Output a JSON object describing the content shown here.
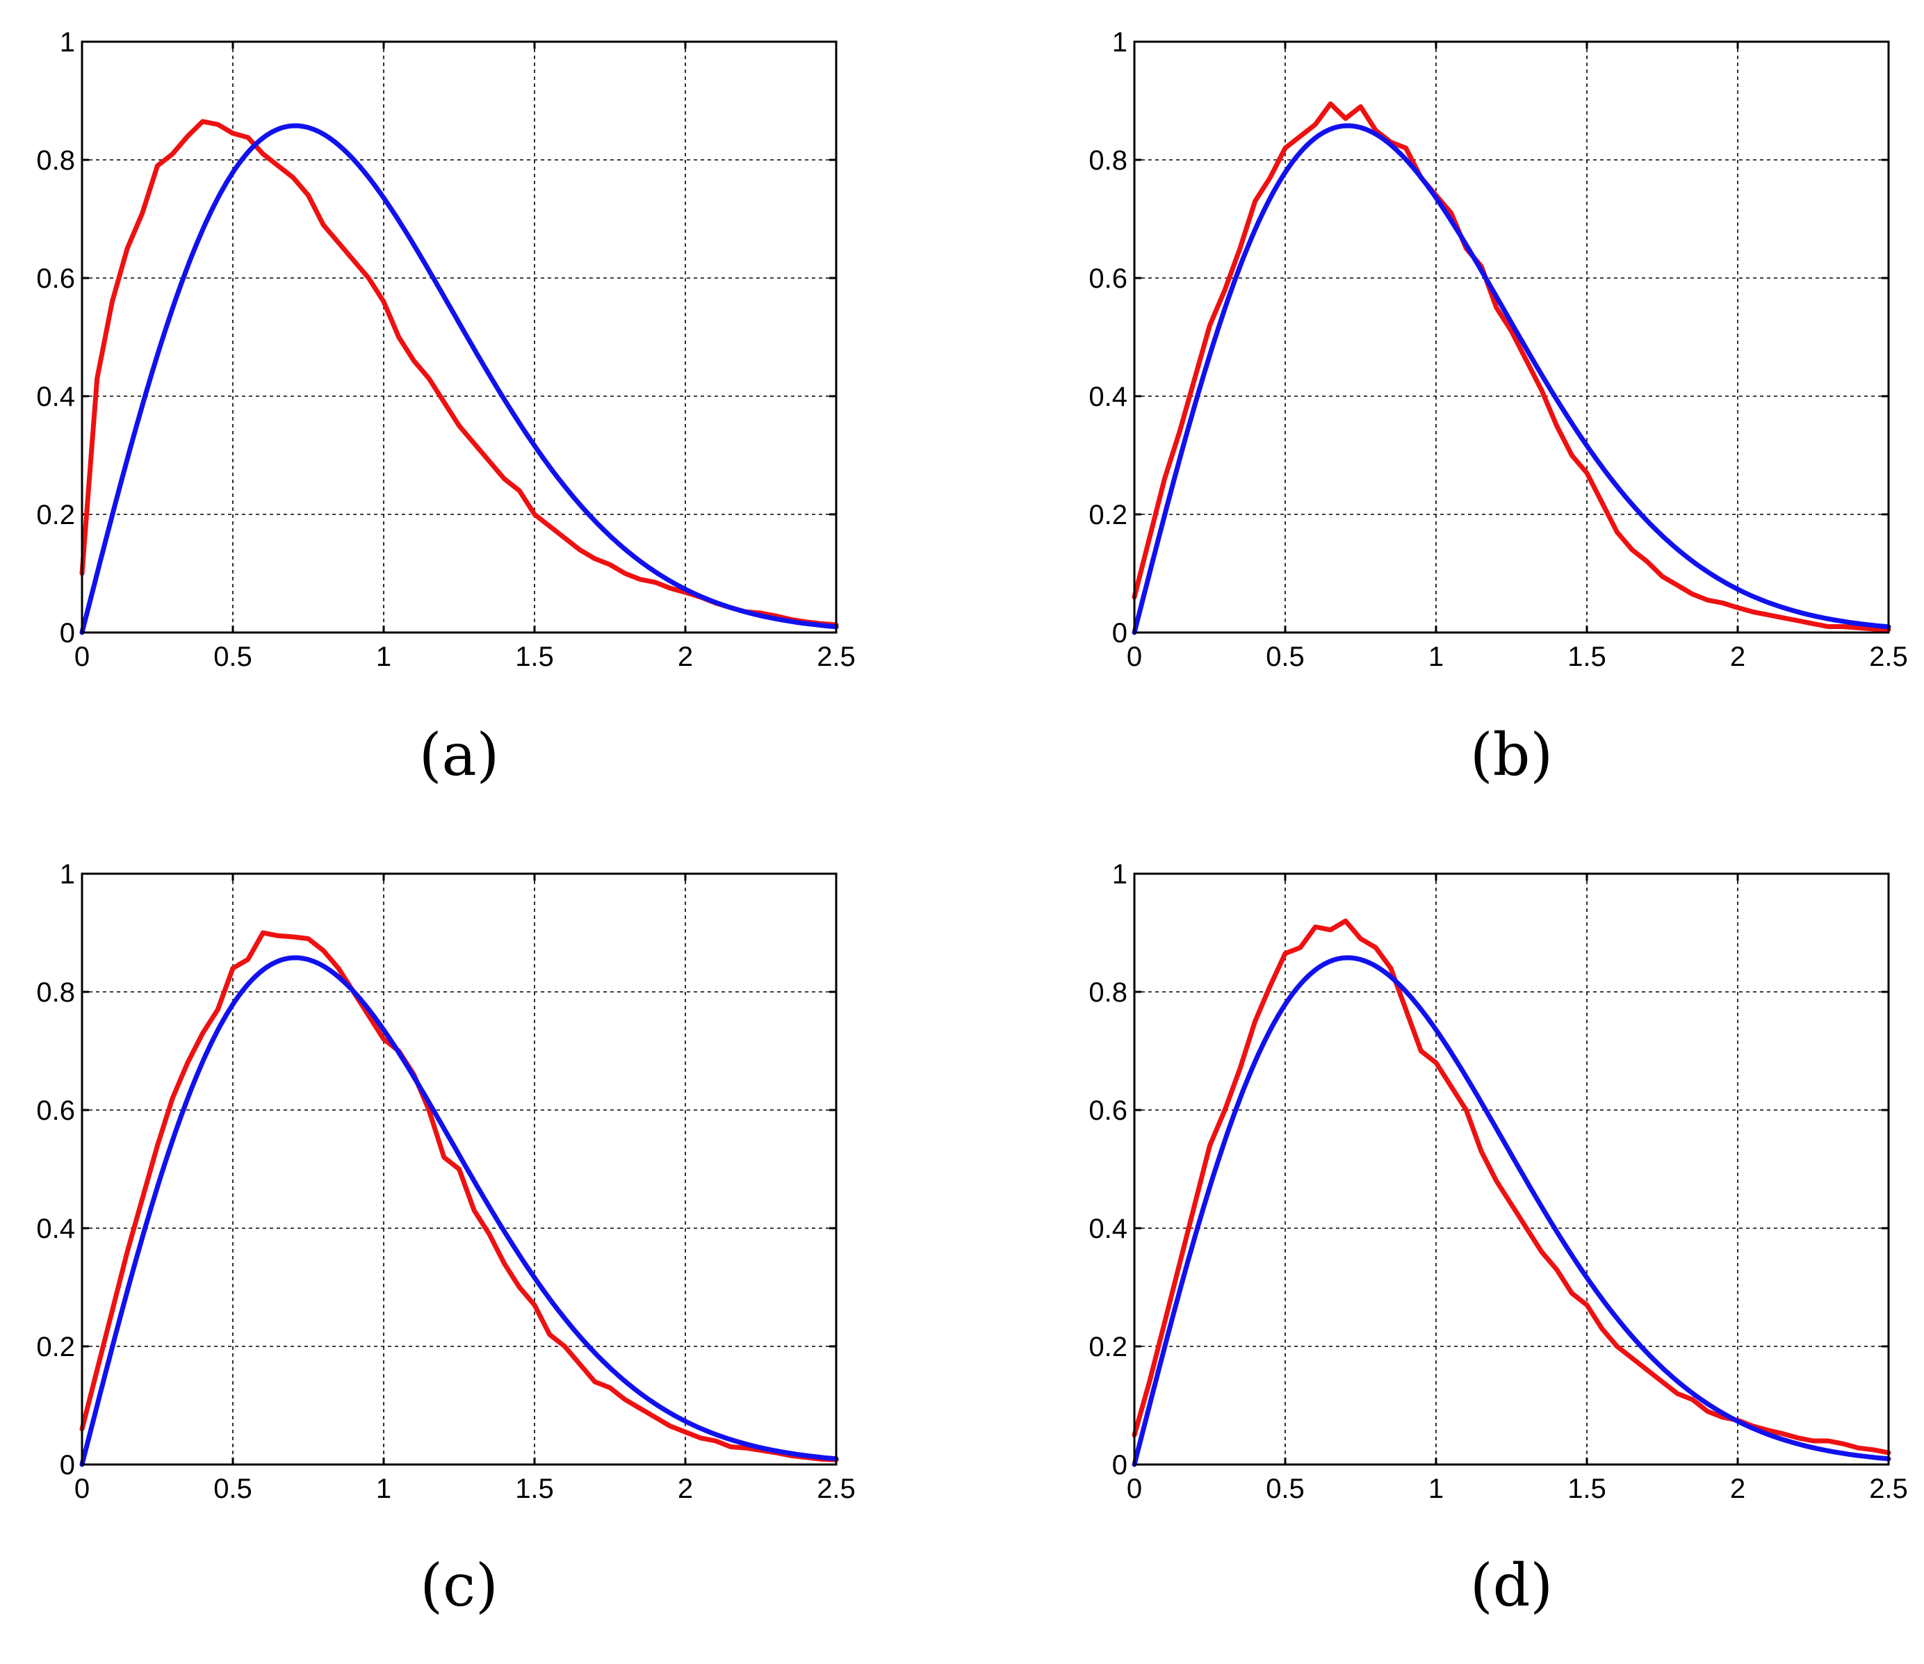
{
  "colors": {
    "empirical": "#ee1111",
    "theoretical": "#1111ee"
  },
  "chart_data": [
    {
      "type": "line",
      "caption": "(a)",
      "xlim": [
        0,
        2.5
      ],
      "ylim": [
        0,
        1
      ],
      "xticks": [
        "0",
        "0.5",
        "1",
        "1.5",
        "2",
        "2.5"
      ],
      "yticks": [
        "0",
        "0.2",
        "0.4",
        "0.6",
        "0.8",
        "1"
      ],
      "grid": true,
      "series": [
        {
          "color_key": "empirical",
          "x": [
            0,
            0.05,
            0.1,
            0.15,
            0.2,
            0.25,
            0.3,
            0.35,
            0.4,
            0.45,
            0.5,
            0.55,
            0.6,
            0.65,
            0.7,
            0.75,
            0.8,
            0.85,
            0.9,
            0.95,
            1.0,
            1.05,
            1.1,
            1.15,
            1.2,
            1.25,
            1.3,
            1.35,
            1.4,
            1.45,
            1.5,
            1.55,
            1.6,
            1.65,
            1.7,
            1.75,
            1.8,
            1.85,
            1.9,
            1.95,
            2.0,
            2.05,
            2.1,
            2.15,
            2.2,
            2.25,
            2.3,
            2.35,
            2.4,
            2.45,
            2.5
          ],
          "y": [
            0.1,
            0.43,
            0.56,
            0.65,
            0.71,
            0.79,
            0.81,
            0.84,
            0.865,
            0.86,
            0.845,
            0.838,
            0.81,
            0.79,
            0.77,
            0.74,
            0.69,
            0.66,
            0.63,
            0.6,
            0.56,
            0.5,
            0.46,
            0.43,
            0.39,
            0.35,
            0.32,
            0.29,
            0.26,
            0.24,
            0.2,
            0.18,
            0.16,
            0.14,
            0.125,
            0.115,
            0.1,
            0.09,
            0.085,
            0.075,
            0.068,
            0.06,
            0.05,
            0.042,
            0.035,
            0.033,
            0.028,
            0.022,
            0.018,
            0.015,
            0.013
          ]
        },
        {
          "color_key": "theoretical",
          "function": "2*x*exp(-x^2)",
          "x_range": [
            0,
            2.5
          ]
        }
      ]
    },
    {
      "type": "line",
      "caption": "(b)",
      "xlim": [
        0,
        2.5
      ],
      "ylim": [
        0,
        1
      ],
      "xticks": [
        "0",
        "0.5",
        "1",
        "1.5",
        "2",
        "2.5"
      ],
      "yticks": [
        "0",
        "0.2",
        "0.4",
        "0.6",
        "0.8",
        "1"
      ],
      "grid": true,
      "series": [
        {
          "color_key": "empirical",
          "x": [
            0,
            0.05,
            0.1,
            0.15,
            0.2,
            0.25,
            0.3,
            0.35,
            0.4,
            0.45,
            0.5,
            0.55,
            0.6,
            0.65,
            0.7,
            0.75,
            0.8,
            0.85,
            0.9,
            0.95,
            1.0,
            1.05,
            1.1,
            1.15,
            1.2,
            1.25,
            1.3,
            1.35,
            1.4,
            1.45,
            1.5,
            1.55,
            1.6,
            1.65,
            1.7,
            1.75,
            1.8,
            1.85,
            1.9,
            1.95,
            2.0,
            2.05,
            2.1,
            2.15,
            2.2,
            2.25,
            2.3,
            2.35,
            2.4,
            2.45,
            2.5
          ],
          "y": [
            0.06,
            0.16,
            0.26,
            0.34,
            0.43,
            0.52,
            0.58,
            0.65,
            0.73,
            0.77,
            0.82,
            0.84,
            0.86,
            0.895,
            0.87,
            0.89,
            0.85,
            0.83,
            0.82,
            0.77,
            0.74,
            0.71,
            0.65,
            0.62,
            0.55,
            0.51,
            0.46,
            0.41,
            0.35,
            0.3,
            0.27,
            0.22,
            0.17,
            0.14,
            0.12,
            0.095,
            0.08,
            0.065,
            0.055,
            0.05,
            0.042,
            0.035,
            0.03,
            0.025,
            0.02,
            0.015,
            0.01,
            0.01,
            0.008,
            0.006,
            0.005
          ]
        },
        {
          "color_key": "theoretical",
          "function": "2*x*exp(-x^2)",
          "x_range": [
            0,
            2.5
          ]
        }
      ]
    },
    {
      "type": "line",
      "caption": "(c)",
      "xlim": [
        0,
        2.5
      ],
      "ylim": [
        0,
        1
      ],
      "xticks": [
        "0",
        "0.5",
        "1",
        "1.5",
        "2",
        "2.5"
      ],
      "yticks": [
        "0",
        "0.2",
        "0.4",
        "0.6",
        "0.8",
        "1"
      ],
      "grid": true,
      "series": [
        {
          "color_key": "empirical",
          "x": [
            0,
            0.05,
            0.1,
            0.15,
            0.2,
            0.25,
            0.3,
            0.35,
            0.4,
            0.45,
            0.5,
            0.55,
            0.6,
            0.65,
            0.7,
            0.75,
            0.8,
            0.85,
            0.9,
            0.95,
            1.0,
            1.05,
            1.1,
            1.15,
            1.2,
            1.25,
            1.3,
            1.35,
            1.4,
            1.45,
            1.5,
            1.55,
            1.6,
            1.65,
            1.7,
            1.75,
            1.8,
            1.85,
            1.9,
            1.95,
            2.0,
            2.05,
            2.1,
            2.15,
            2.2,
            2.25,
            2.3,
            2.35,
            2.4,
            2.45,
            2.5
          ],
          "y": [
            0.06,
            0.16,
            0.26,
            0.36,
            0.45,
            0.54,
            0.62,
            0.68,
            0.73,
            0.77,
            0.84,
            0.855,
            0.9,
            0.895,
            0.893,
            0.89,
            0.87,
            0.84,
            0.8,
            0.76,
            0.72,
            0.7,
            0.66,
            0.6,
            0.52,
            0.5,
            0.43,
            0.39,
            0.34,
            0.3,
            0.27,
            0.22,
            0.2,
            0.17,
            0.14,
            0.13,
            0.11,
            0.095,
            0.08,
            0.065,
            0.055,
            0.045,
            0.04,
            0.03,
            0.028,
            0.024,
            0.02,
            0.015,
            0.012,
            0.009,
            0.008
          ]
        },
        {
          "color_key": "theoretical",
          "function": "2*x*exp(-x^2)",
          "x_range": [
            0,
            2.5
          ]
        }
      ]
    },
    {
      "type": "line",
      "caption": "(d)",
      "xlim": [
        0,
        2.5
      ],
      "ylim": [
        0,
        1
      ],
      "xticks": [
        "0",
        "0.5",
        "1",
        "1.5",
        "2",
        "2.5"
      ],
      "yticks": [
        "0",
        "0.2",
        "0.4",
        "0.6",
        "0.8",
        "1"
      ],
      "grid": true,
      "series": [
        {
          "color_key": "empirical",
          "x": [
            0,
            0.05,
            0.1,
            0.15,
            0.2,
            0.25,
            0.3,
            0.35,
            0.4,
            0.45,
            0.5,
            0.55,
            0.6,
            0.65,
            0.7,
            0.75,
            0.8,
            0.85,
            0.9,
            0.95,
            1.0,
            1.05,
            1.1,
            1.15,
            1.2,
            1.25,
            1.3,
            1.35,
            1.4,
            1.45,
            1.5,
            1.55,
            1.6,
            1.65,
            1.7,
            1.75,
            1.8,
            1.85,
            1.9,
            1.95,
            2.0,
            2.05,
            2.1,
            2.15,
            2.2,
            2.25,
            2.3,
            2.35,
            2.4,
            2.45,
            2.5
          ],
          "y": [
            0.05,
            0.14,
            0.24,
            0.34,
            0.44,
            0.54,
            0.6,
            0.67,
            0.75,
            0.81,
            0.865,
            0.875,
            0.91,
            0.905,
            0.92,
            0.89,
            0.875,
            0.84,
            0.77,
            0.7,
            0.68,
            0.64,
            0.6,
            0.53,
            0.48,
            0.44,
            0.4,
            0.36,
            0.33,
            0.29,
            0.27,
            0.23,
            0.2,
            0.18,
            0.16,
            0.14,
            0.12,
            0.11,
            0.09,
            0.08,
            0.075,
            0.065,
            0.058,
            0.052,
            0.045,
            0.04,
            0.04,
            0.035,
            0.028,
            0.025,
            0.02
          ]
        },
        {
          "color_key": "theoretical",
          "function": "2*x*exp(-x^2)",
          "x_range": [
            0,
            2.5
          ]
        }
      ]
    }
  ]
}
